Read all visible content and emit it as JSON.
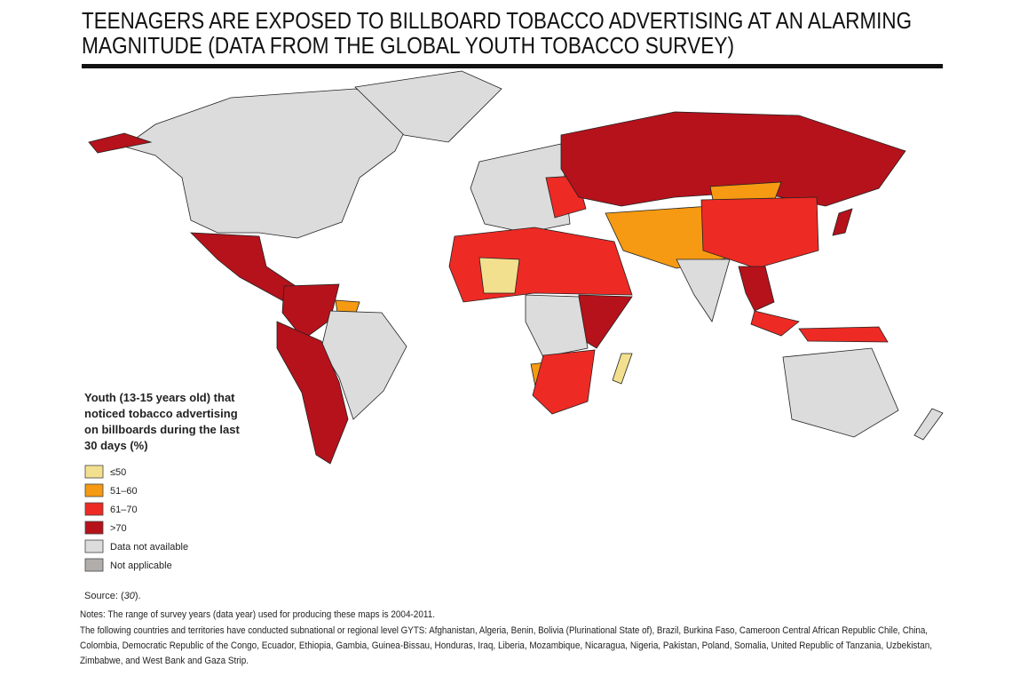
{
  "header": {
    "title_lines": [
      "TEENAGERS ARE EXPOSED TO BILLBOARD TOBACCO ADVERTISING AT AN ALARMING",
      "MAGNITUDE (DATA FROM THE GLOBAL YOUTH TOBACCO SURVEY)"
    ]
  },
  "legend": {
    "title_lines": [
      "Youth (13-15 years old) that",
      "noticed tobacco advertising",
      "on billboards during the last",
      "30 days (%)"
    ],
    "items": [
      {
        "label": "≤50",
        "color": "#f3e08e"
      },
      {
        "label": "51–60",
        "color": "#f59a12"
      },
      {
        "label": "61–70",
        "color": "#ee2a24"
      },
      {
        "label": ">70",
        "color": "#b5121b"
      },
      {
        "label": "Data not available",
        "color": "#dcdcdc"
      },
      {
        "label": "Not applicable",
        "color": "#b1adab"
      }
    ]
  },
  "source": {
    "prefix": "Source: (",
    "ref": "30",
    "suffix": ")."
  },
  "notes": [
    "Notes: The range of survey years (data year) used for producing these maps is 2004-2011.",
    "The following countries and territories have conducted subnational or regional level GYTS: Afghanistan, Algeria, Benin, Bolivia (Plurinational State of), Brazil, Burkina Faso, Cameroon  Central African Republic  Chile, China,",
    "Colombia, Democratic Republic of the Congo, Ecuador, Ethiopia, Gambia, Guinea-Bissau, Honduras, Iraq, Liberia, Mozambique, Nicaragua, Nigeria, Pakistan, Poland, Somalia, United Republic of Tanzania, Uzbekistan,",
    "Zimbabwe, and West Bank and Gaza Strip."
  ]
}
